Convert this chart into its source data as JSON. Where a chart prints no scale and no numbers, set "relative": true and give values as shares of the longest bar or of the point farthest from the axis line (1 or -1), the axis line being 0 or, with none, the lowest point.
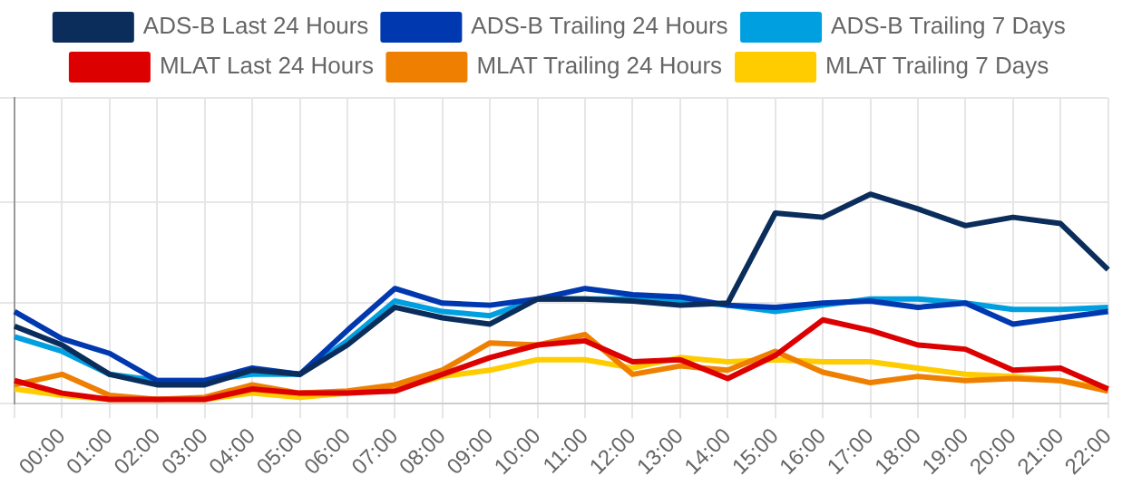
{
  "chart_data": {
    "type": "line",
    "relative": true,
    "grid": true,
    "legend": "top",
    "marker": "none",
    "line_style": "solid",
    "categories": [
      null,
      "00:00",
      "01:00",
      "02:00",
      "03:00",
      "04:00",
      "05:00",
      "06:00",
      "07:00",
      "08:00",
      "09:00",
      "10:00",
      "11:00",
      "12:00",
      "13:00",
      "14:00",
      "15:00",
      "16:00",
      "17:00",
      "18:00",
      "19:00",
      "20:00",
      "21:00",
      "22:00"
    ],
    "series": [
      {
        "name": "ADS-B Last 24 Hours",
        "color": "#0b2d5b",
        "values": [
          0.37,
          0.28,
          0.14,
          0.09,
          0.09,
          0.16,
          0.14,
          0.28,
          0.46,
          0.41,
          0.38,
          0.5,
          0.5,
          0.49,
          0.47,
          0.48,
          0.91,
          0.89,
          1,
          0.93,
          0.85,
          0.89,
          0.86,
          0.64
        ]
      },
      {
        "name": "ADS-B Trailing 24 Hours",
        "color": "#0038b0",
        "values": [
          0.44,
          0.31,
          0.24,
          0.11,
          0.11,
          0.17,
          0.14,
          0.35,
          0.55,
          0.48,
          0.47,
          0.5,
          0.55,
          0.52,
          0.51,
          0.47,
          0.46,
          0.48,
          0.49,
          0.46,
          0.48,
          0.38,
          0.41,
          0.44
        ]
      },
      {
        "name": "ADS-B Trailing 7 Days",
        "color": "#00a0e0",
        "values": [
          0.32,
          0.25,
          0.14,
          0.11,
          0.11,
          0.14,
          0.14,
          0.3,
          0.49,
          0.44,
          0.42,
          0.5,
          0.5,
          0.5,
          0.49,
          0.47,
          0.44,
          0.47,
          0.5,
          0.5,
          0.48,
          0.45,
          0.45,
          0.46
        ]
      },
      {
        "name": "MLAT Last 24 Hours",
        "color": "#dd0000",
        "values": [
          0.11,
          0.05,
          0.02,
          0.02,
          0.02,
          0.07,
          0.05,
          0.05,
          0.06,
          0.14,
          0.22,
          0.28,
          0.3,
          0.2,
          0.21,
          0.12,
          0.23,
          0.4,
          0.35,
          0.28,
          0.26,
          0.16,
          0.17,
          0.07
        ]
      },
      {
        "name": "MLAT Trailing 24 Hours",
        "color": "#ee7f00",
        "values": [
          0.09,
          0.14,
          0.04,
          0.02,
          0.03,
          0.09,
          0.05,
          0.06,
          0.09,
          0.16,
          0.29,
          0.28,
          0.33,
          0.14,
          0.18,
          0.16,
          0.25,
          0.15,
          0.1,
          0.13,
          0.11,
          0.12,
          0.11,
          0.06
        ]
      },
      {
        "name": "MLAT Trailing 7 Days",
        "color": "#ffcc00",
        "values": [
          0.07,
          0.04,
          0.02,
          0.02,
          0.02,
          0.05,
          0.03,
          0.05,
          0.07,
          0.13,
          0.16,
          0.21,
          0.21,
          0.17,
          0.22,
          0.2,
          0.21,
          0.2,
          0.2,
          0.17,
          0.14,
          0.13,
          0.11,
          0.07
        ]
      }
    ]
  }
}
